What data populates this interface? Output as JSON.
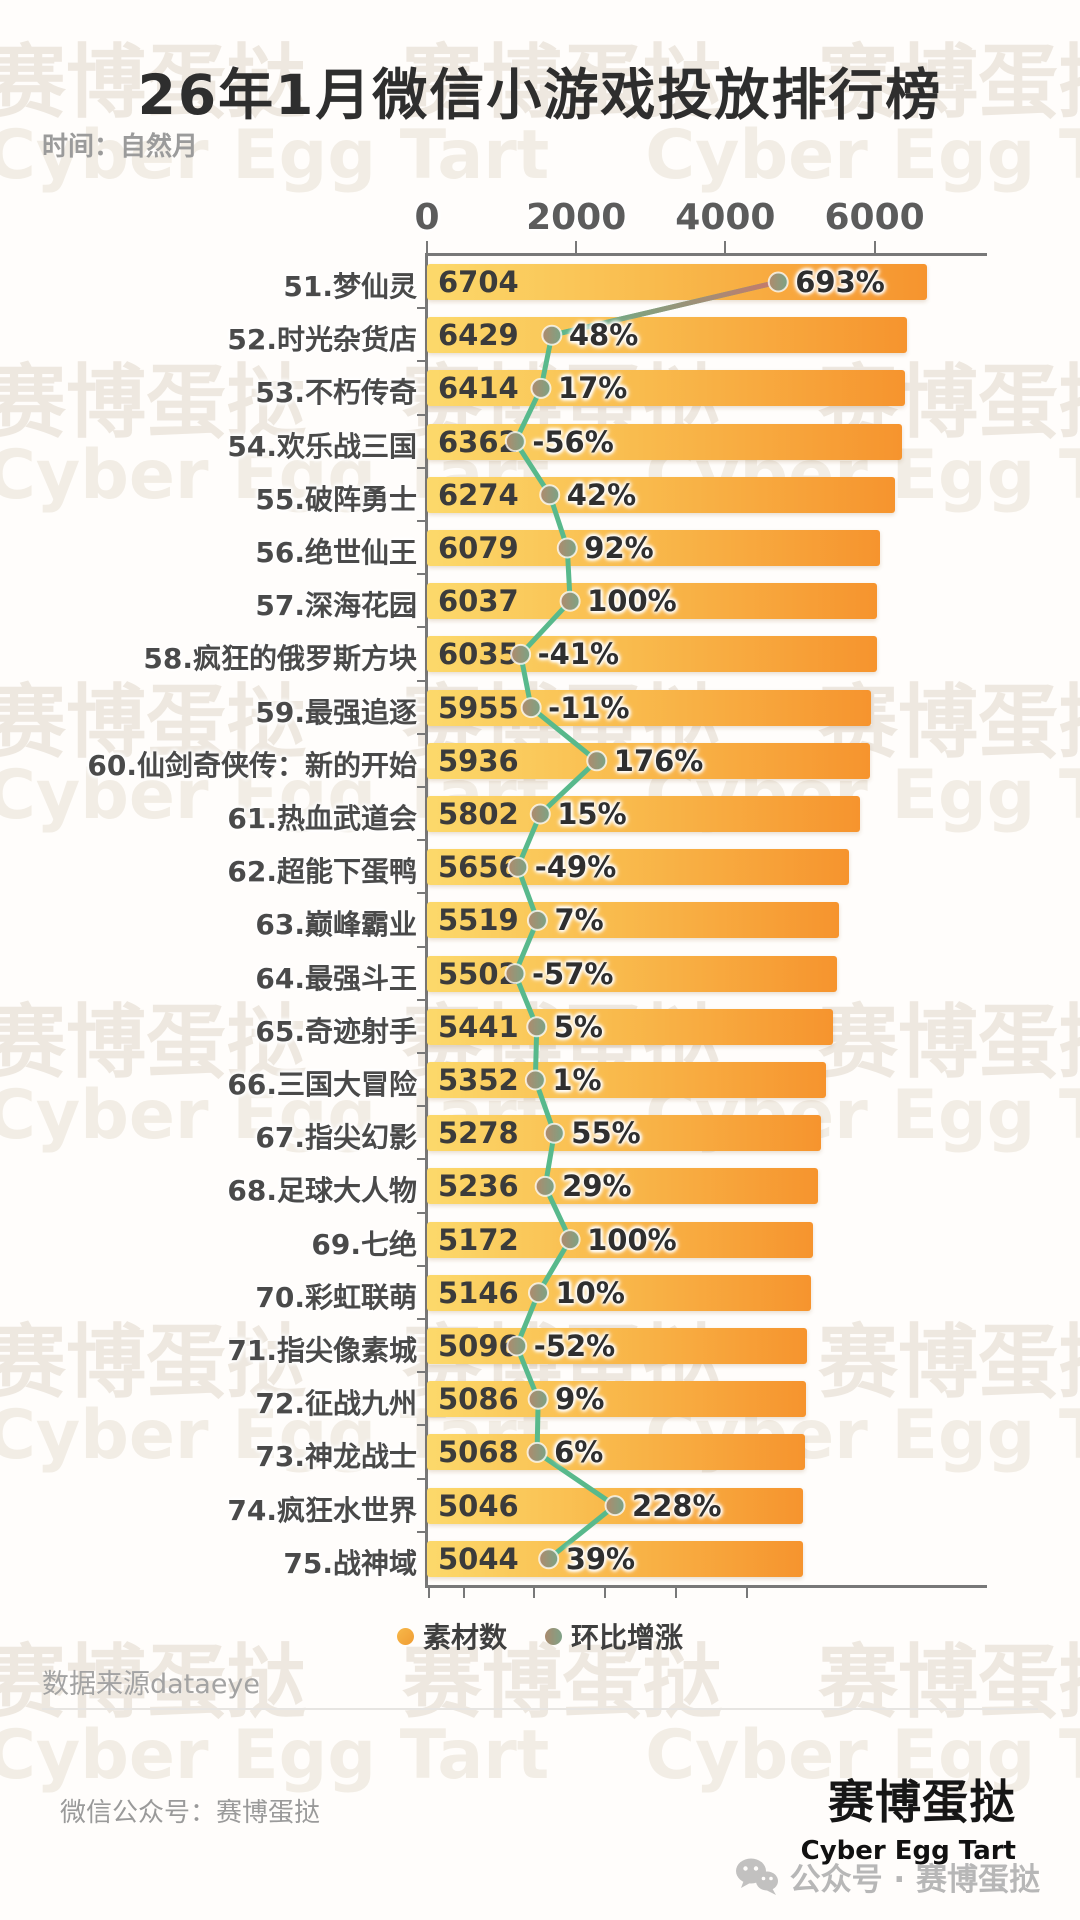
{
  "page": {
    "title": "26年1月微信小游戏投放排行榜",
    "subtitle": "时间：自然月"
  },
  "watermark": {
    "zh": "赛博蛋挞",
    "en": "Cyber Egg Tart"
  },
  "chart_data": {
    "type": "bar",
    "orientation": "horizontal",
    "title": "26年1月微信小游戏投放排行榜",
    "x_axis": {
      "position": "top",
      "ticks": [
        0,
        2000,
        4000,
        6000
      ]
    },
    "legend_position": "bottom",
    "series": [
      {
        "name": "素材数",
        "type": "bar",
        "color_start": "#fcd96b",
        "color_end": "#f6942e"
      },
      {
        "name": "环比增涨",
        "type": "line",
        "color": "#58b98c",
        "rise_color": "#c7786b"
      }
    ],
    "rows": [
      {
        "rank": 51,
        "label": "51.梦仙灵",
        "name": "梦仙灵",
        "materials": 6704,
        "growth_pct": 693,
        "growth_label": "693%"
      },
      {
        "rank": 52,
        "label": "52.时光杂货店",
        "name": "时光杂货店",
        "materials": 6429,
        "growth_pct": 48,
        "growth_label": "48%"
      },
      {
        "rank": 53,
        "label": "53.不朽传奇",
        "name": "不朽传奇",
        "materials": 6414,
        "growth_pct": 17,
        "growth_label": "17%"
      },
      {
        "rank": 54,
        "label": "54.欢乐战三国",
        "name": "欢乐战三国",
        "materials": 6362,
        "growth_pct": -56,
        "growth_label": "-56%"
      },
      {
        "rank": 55,
        "label": "55.破阵勇士",
        "name": "破阵勇士",
        "materials": 6274,
        "growth_pct": 42,
        "growth_label": "42%"
      },
      {
        "rank": 56,
        "label": "56.绝世仙王",
        "name": "绝世仙王",
        "materials": 6079,
        "growth_pct": 92,
        "growth_label": "92%"
      },
      {
        "rank": 57,
        "label": "57.深海花园",
        "name": "深海花园",
        "materials": 6037,
        "growth_pct": 100,
        "growth_label": "100%"
      },
      {
        "rank": 58,
        "label": "58.疯狂的俄罗斯方块",
        "name": "疯狂的俄罗斯方块",
        "materials": 6035,
        "growth_pct": -41,
        "growth_label": "-41%"
      },
      {
        "rank": 59,
        "label": "59.最强追逐",
        "name": "最强追逐",
        "materials": 5955,
        "growth_pct": -11,
        "growth_label": "-11%"
      },
      {
        "rank": 60,
        "label": "60.仙剑奇侠传：新的开始",
        "name": "仙剑奇侠传：新的开始",
        "materials": 5936,
        "growth_pct": 176,
        "growth_label": "176%"
      },
      {
        "rank": 61,
        "label": "61.热血武道会",
        "name": "热血武道会",
        "materials": 5802,
        "growth_pct": 15,
        "growth_label": "15%"
      },
      {
        "rank": 62,
        "label": "62.超能下蛋鸭",
        "name": "超能下蛋鸭",
        "materials": 5656,
        "growth_pct": -49,
        "growth_label": "-49%"
      },
      {
        "rank": 63,
        "label": "63.巅峰霸业",
        "name": "巅峰霸业",
        "materials": 5519,
        "growth_pct": 7,
        "growth_label": "7%"
      },
      {
        "rank": 64,
        "label": "64.最强斗王",
        "name": "最强斗王",
        "materials": 5502,
        "growth_pct": -57,
        "growth_label": "-57%"
      },
      {
        "rank": 65,
        "label": "65.奇迹射手",
        "name": "奇迹射手",
        "materials": 5441,
        "growth_pct": 5,
        "growth_label": "5%"
      },
      {
        "rank": 66,
        "label": "66.三国大冒险",
        "name": "三国大冒险",
        "materials": 5352,
        "growth_pct": 1,
        "growth_label": "1%"
      },
      {
        "rank": 67,
        "label": "67.指尖幻影",
        "name": "指尖幻影",
        "materials": 5278,
        "growth_pct": 55,
        "growth_label": "55%"
      },
      {
        "rank": 68,
        "label": "68.足球大人物",
        "name": "足球大人物",
        "materials": 5236,
        "growth_pct": 29,
        "growth_label": "29%"
      },
      {
        "rank": 69,
        "label": "69.七绝",
        "name": "七绝",
        "materials": 5172,
        "growth_pct": 100,
        "growth_label": "100%"
      },
      {
        "rank": 70,
        "label": "70.彩虹联萌",
        "name": "彩虹联萌",
        "materials": 5146,
        "growth_pct": 10,
        "growth_label": "10%"
      },
      {
        "rank": 71,
        "label": "71.指尖像素城",
        "name": "指尖像素城",
        "materials": 5096,
        "growth_pct": -52,
        "growth_label": "-52%"
      },
      {
        "rank": 72,
        "label": "72.征战九州",
        "name": "征战九州",
        "materials": 5086,
        "growth_pct": 9,
        "growth_label": "9%"
      },
      {
        "rank": 73,
        "label": "73.神龙战士",
        "name": "神龙战士",
        "materials": 5068,
        "growth_pct": 6,
        "growth_label": "6%"
      },
      {
        "rank": 74,
        "label": "74.疯狂水世界",
        "name": "疯狂水世界",
        "materials": 5046,
        "growth_pct": 228,
        "growth_label": "228%"
      },
      {
        "rank": 75,
        "label": "75.战神域",
        "name": "战神域",
        "materials": 5044,
        "growth_pct": 39,
        "growth_label": "39%"
      }
    ]
  },
  "legend": [
    {
      "label": "素材数",
      "color": "#f4a53c"
    },
    {
      "label": "环比增涨",
      "color": "#8f9a78"
    }
  ],
  "footer": {
    "source": "数据来源dataeye",
    "account": "微信公众号：赛博蛋挞",
    "brand_zh": "赛博蛋挞",
    "brand_en": "Cyber Egg Tart",
    "badge": "公众号 · 赛博蛋挞"
  }
}
